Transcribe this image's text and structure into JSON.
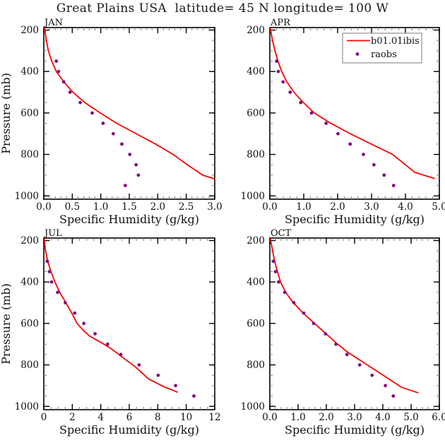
{
  "title": "Great Plains USA  latitude= 45 N longitude= 100 W",
  "axis_labels": {
    "x": "Specific Humidity (g/kg)",
    "y": "Pressure (mb)"
  },
  "legend": {
    "panel": "APR",
    "position": "top-right",
    "entries": [
      {
        "label": "b01.01ibis",
        "marker": "line"
      },
      {
        "label": "raobs",
        "marker": "dot"
      }
    ]
  },
  "colors": {
    "model_line": "#f80400",
    "raobs_dot": "#810d81",
    "axis": "#000000",
    "minor_tick": "#7a7a7a",
    "legend_border": "#999999",
    "background": "#ffffff"
  },
  "chart_data": [
    {
      "type": "line+scatter",
      "panel_title": "JAN",
      "xlim": [
        0,
        3
      ],
      "xticks": [
        0,
        0.5,
        1,
        1.5,
        2,
        2.5,
        3
      ],
      "xtick_labels": [
        "0.0",
        "0.5",
        "1.0",
        "1.5",
        "2.0",
        "2.5",
        "3.0"
      ],
      "xminor_step": 0.1,
      "ylim": [
        188,
        1016
      ],
      "yticks": [
        200,
        400,
        600,
        800,
        1000
      ],
      "ytick_labels": [
        "200",
        "400",
        "600",
        "800",
        "1000"
      ],
      "yminor_step": 50,
      "series": [
        {
          "name": "b01.01ibis",
          "type": "line",
          "points_pressure_value": [
            [
              190,
              0.01
            ],
            [
              200,
              0.02
            ],
            [
              250,
              0.045
            ],
            [
              300,
              0.08
            ],
            [
              350,
              0.14
            ],
            [
              400,
              0.22
            ],
            [
              450,
              0.35
            ],
            [
              500,
              0.51
            ],
            [
              550,
              0.72
            ],
            [
              600,
              0.99
            ],
            [
              650,
              1.28
            ],
            [
              700,
              1.62
            ],
            [
              750,
              1.96
            ],
            [
              800,
              2.27
            ],
            [
              850,
              2.52
            ],
            [
              900,
              2.79
            ],
            [
              918,
              3.0
            ]
          ]
        },
        {
          "name": "raobs",
          "type": "scatter",
          "points_pressure_value": [
            [
              350,
              0.22
            ],
            [
              400,
              0.26
            ],
            [
              450,
              0.35
            ],
            [
              500,
              0.46
            ],
            [
              550,
              0.64
            ],
            [
              600,
              0.85
            ],
            [
              650,
              1.04
            ],
            [
              700,
              1.22
            ],
            [
              750,
              1.37
            ],
            [
              800,
              1.51
            ],
            [
              850,
              1.62
            ],
            [
              900,
              1.66
            ],
            [
              950,
              1.43
            ]
          ]
        }
      ]
    },
    {
      "type": "line+scatter",
      "panel_title": "APR",
      "xlim": [
        0,
        5
      ],
      "xticks": [
        0,
        1,
        2,
        3,
        4,
        5
      ],
      "xtick_labels": [
        "0.0",
        "1.0",
        "2.0",
        "3.0",
        "4.0",
        "5.0"
      ],
      "xminor_step": 0.2,
      "ylim": [
        188,
        1016
      ],
      "yticks": [
        200,
        400,
        600,
        800,
        1000
      ],
      "ytick_labels": [
        "200",
        "400",
        "600",
        "800",
        "1000"
      ],
      "yminor_step": 50,
      "series": [
        {
          "name": "b01.01ibis",
          "type": "line",
          "points_pressure_value": [
            [
              190,
              0.01
            ],
            [
              250,
              0.08
            ],
            [
              300,
              0.15
            ],
            [
              350,
              0.24
            ],
            [
              400,
              0.35
            ],
            [
              450,
              0.5
            ],
            [
              500,
              0.71
            ],
            [
              550,
              0.99
            ],
            [
              600,
              1.31
            ],
            [
              650,
              1.8
            ],
            [
              700,
              2.37
            ],
            [
              750,
              2.99
            ],
            [
              800,
              3.62
            ],
            [
              850,
              4.0
            ],
            [
              886,
              4.27
            ],
            [
              916,
              4.85
            ]
          ]
        },
        {
          "name": "raobs",
          "type": "scatter",
          "points_pressure_value": [
            [
              350,
              0.2
            ],
            [
              400,
              0.25
            ],
            [
              450,
              0.39
            ],
            [
              500,
              0.6
            ],
            [
              550,
              0.91
            ],
            [
              600,
              1.23
            ],
            [
              650,
              1.66
            ],
            [
              700,
              2.01
            ],
            [
              750,
              2.37
            ],
            [
              800,
              2.76
            ],
            [
              850,
              3.07
            ],
            [
              900,
              3.37
            ],
            [
              950,
              3.65
            ]
          ]
        }
      ]
    },
    {
      "type": "line+scatter",
      "panel_title": "JUL",
      "xlim": [
        0,
        12
      ],
      "xticks": [
        0,
        2,
        4,
        6,
        8,
        10,
        12
      ],
      "xtick_labels": [
        "0",
        "2",
        "4",
        "6",
        "8",
        "10",
        "12"
      ],
      "xminor_step": 0.5,
      "ylim": [
        188,
        1016
      ],
      "yticks": [
        200,
        400,
        600,
        800,
        1000
      ],
      "ytick_labels": [
        "200",
        "400",
        "600",
        "800",
        "1000"
      ],
      "yminor_step": 50,
      "series": [
        {
          "name": "b01.01ibis",
          "type": "line",
          "points_pressure_value": [
            [
              190,
              0.03
            ],
            [
              250,
              0.12
            ],
            [
              300,
              0.28
            ],
            [
              350,
              0.5
            ],
            [
              400,
              0.78
            ],
            [
              450,
              1.12
            ],
            [
              500,
              1.55
            ],
            [
              550,
              1.96
            ],
            [
              600,
              2.34
            ],
            [
              630,
              2.72
            ],
            [
              660,
              3.2
            ],
            [
              695,
              4.1
            ],
            [
              725,
              4.8
            ],
            [
              759,
              5.44
            ],
            [
              810,
              6.44
            ],
            [
              868,
              7.36
            ],
            [
              906,
              8.45
            ],
            [
              931,
              9.37
            ]
          ]
        },
        {
          "name": "raobs",
          "type": "scatter",
          "points_pressure_value": [
            [
              300,
              0.25
            ],
            [
              350,
              0.39
            ],
            [
              400,
              0.55
            ],
            [
              450,
              0.97
            ],
            [
              500,
              1.51
            ],
            [
              550,
              2.17
            ],
            [
              600,
              2.81
            ],
            [
              650,
              3.6
            ],
            [
              700,
              4.48
            ],
            [
              750,
              5.41
            ],
            [
              800,
              6.69
            ],
            [
              850,
              8.03
            ],
            [
              900,
              9.25
            ],
            [
              950,
              10.54
            ]
          ]
        }
      ]
    },
    {
      "type": "line+scatter",
      "panel_title": "OCT",
      "xlim": [
        0,
        6
      ],
      "xticks": [
        0,
        1,
        2,
        3,
        4,
        5,
        6
      ],
      "xtick_labels": [
        "0.0",
        "1.0",
        "2.0",
        "3.0",
        "4.0",
        "5.0",
        "6.0"
      ],
      "xminor_step": 0.2,
      "ylim": [
        188,
        1016
      ],
      "yticks": [
        200,
        400,
        600,
        800,
        1000
      ],
      "ytick_labels": [
        "200",
        "400",
        "600",
        "800",
        "1000"
      ],
      "yminor_step": 50,
      "series": [
        {
          "name": "b01.01ibis",
          "type": "line",
          "points_pressure_value": [
            [
              192,
              0.02
            ],
            [
              250,
              0.1
            ],
            [
              300,
              0.17
            ],
            [
              350,
              0.27
            ],
            [
              400,
              0.38
            ],
            [
              450,
              0.56
            ],
            [
              500,
              0.83
            ],
            [
              550,
              1.18
            ],
            [
              600,
              1.58
            ],
            [
              650,
              1.99
            ],
            [
              700,
              2.4
            ],
            [
              741,
              2.78
            ],
            [
              800,
              3.45
            ],
            [
              856,
              4.08
            ],
            [
              908,
              4.66
            ],
            [
              934,
              5.24
            ]
          ]
        },
        {
          "name": "raobs",
          "type": "scatter",
          "points_pressure_value": [
            [
              300,
              0.13
            ],
            [
              350,
              0.2
            ],
            [
              400,
              0.31
            ],
            [
              450,
              0.53
            ],
            [
              500,
              0.85
            ],
            [
              550,
              1.2
            ],
            [
              600,
              1.55
            ],
            [
              650,
              1.97
            ],
            [
              700,
              2.34
            ],
            [
              750,
              2.73
            ],
            [
              800,
              3.18
            ],
            [
              850,
              3.62
            ],
            [
              900,
              4.09
            ],
            [
              950,
              4.37
            ]
          ]
        }
      ]
    }
  ]
}
